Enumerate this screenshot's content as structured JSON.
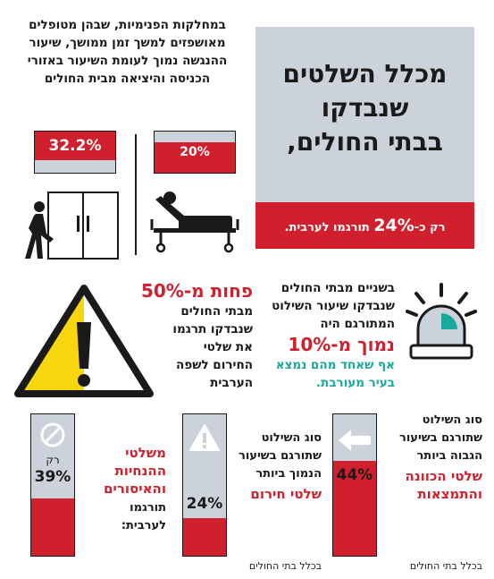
{
  "intro_text": "במחלקות הפנימיות, שבהן מטופלים מאושפזים למשך זמן ממושך, שיעור ההנגשה נמוך לעומת השיעור באזורי הכניסה והיציאה מבית החולים",
  "title_box": {
    "title_line1": "מכלל השלטים",
    "title_line2": "שנבדקו",
    "title_line3": "בבתי החולים,",
    "footer_pre": "רק כ-",
    "footer_num": "24%",
    "footer_post": " תורגמו לערבית."
  },
  "entry_exit": {
    "left_value": "32.2%",
    "left_fill": 0.322,
    "right_value": "20%",
    "right_fill": 0.2
  },
  "warning_block": {
    "headline": "פחות מ-50%",
    "text": "מבתי החולים שנבדקו תרגמו את שלטי החירום לשפה הערבית"
  },
  "alarm_block": {
    "text": "בשניים מבתי החולים שנבדקו שיעור השילוט המתורגם היה",
    "headline": "נמוך מ-10%",
    "teal_text": "אף שאחד מהם נמצא בעיר מעורבת."
  },
  "bars": [
    {
      "side_text": "סוג השילוט שתורגם בשיעור הגבוה ביותר",
      "category": "שלטי הכוונה והתמצאות",
      "value": "44%",
      "fill": 0.44,
      "icon": "arrow-left-icon",
      "caption": "בכלל בתי החולים"
    },
    {
      "side_text": "סוג השילוט שתורגם בשיעור הנמוך ביותר",
      "category": "שלטי חירום",
      "value": "24%",
      "fill": 0.24,
      "icon": "warning-icon",
      "caption": "בכלל בתי החולים"
    },
    {
      "category": "משלטי ההנחיות והאיסורים",
      "post_text": "תורגמו לערבית:",
      "pre_value": "רק",
      "value": "39%",
      "fill": 0.39,
      "icon": "prohibited-icon"
    }
  ]
}
